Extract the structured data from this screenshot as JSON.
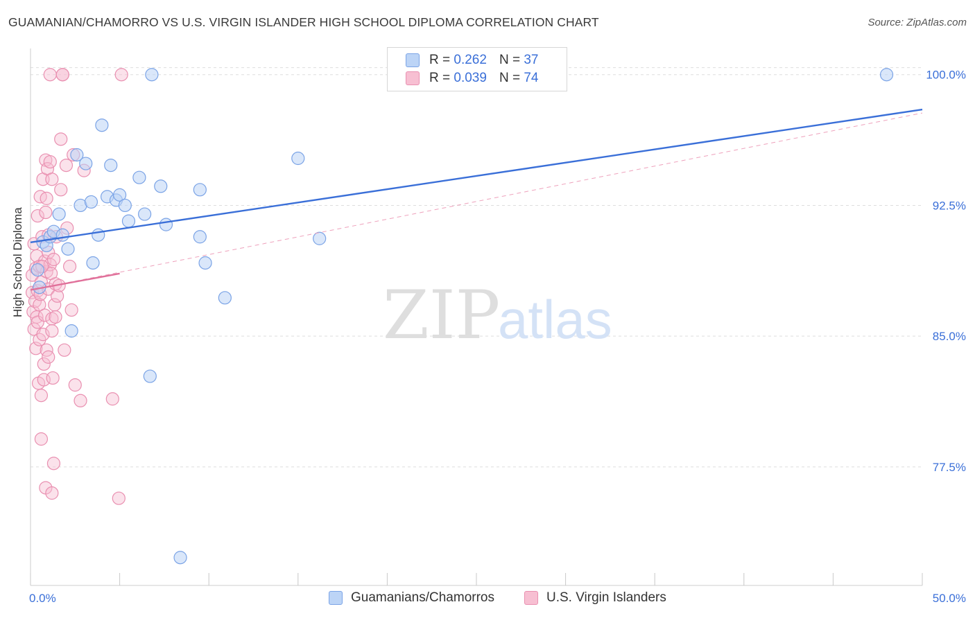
{
  "title": "GUAMANIAN/CHAMORRO VS U.S. VIRGIN ISLANDER HIGH SCHOOL DIPLOMA CORRELATION CHART",
  "source": "Source: ZipAtlas.com",
  "watermark": {
    "zip": "ZIP",
    "atlas": "atlas"
  },
  "colors": {
    "blue": "#3a6fd8",
    "blue_fill": "#bcd4f6",
    "pink": "#e0709a",
    "pink_fill": "#f7bfd2",
    "axis_text": "#3a6fd8",
    "grid": "#dddddd"
  },
  "legend": {
    "rows": [
      {
        "r_label": "R =",
        "r_value": "0.262",
        "n_label": "N =",
        "n_value": "37"
      },
      {
        "r_label": "R =",
        "r_value": "0.039",
        "n_label": "N =",
        "n_value": "74"
      }
    ]
  },
  "bottom_legend": [
    "Guamanians/Chamorros",
    "U.S. Virgin Islanders"
  ],
  "chart_data": {
    "type": "scatter",
    "title": "GUAMANIAN/CHAMORRO VS U.S. VIRGIN ISLANDER HIGH SCHOOL DIPLOMA CORRELATION CHART",
    "xlabel": "",
    "ylabel": "High School Diploma",
    "xlim": [
      0,
      50
    ],
    "ylim": [
      70.7,
      101.5
    ],
    "x_tick_labels": [
      "0.0%",
      "50.0%"
    ],
    "y_ticks": [
      77.5,
      85.0,
      92.5,
      100.0
    ],
    "y_tick_labels": [
      "77.5%",
      "85.0%",
      "92.5%",
      "100.0%"
    ],
    "series": [
      {
        "name": "Guamanians/Chamorros",
        "color": "#3a6fd8",
        "trend": {
          "x": [
            0,
            50
          ],
          "y": [
            90.38,
            98.0
          ],
          "style": "solid"
        },
        "points": [
          [
            0.4,
            88.8
          ],
          [
            0.5,
            87.8
          ],
          [
            0.7,
            90.4
          ],
          [
            0.9,
            90.2
          ],
          [
            1.1,
            90.7
          ],
          [
            1.3,
            91.0
          ],
          [
            1.6,
            92.0
          ],
          [
            1.8,
            90.8
          ],
          [
            2.1,
            90.0
          ],
          [
            2.3,
            85.3
          ],
          [
            2.6,
            95.4
          ],
          [
            2.8,
            92.5
          ],
          [
            3.1,
            94.9
          ],
          [
            3.4,
            92.7
          ],
          [
            3.5,
            89.2
          ],
          [
            3.8,
            90.8
          ],
          [
            4.0,
            97.1
          ],
          [
            4.3,
            93.0
          ],
          [
            4.5,
            94.8
          ],
          [
            4.8,
            92.8
          ],
          [
            5.0,
            93.1
          ],
          [
            5.3,
            92.5
          ],
          [
            5.5,
            91.6
          ],
          [
            6.1,
            94.1
          ],
          [
            6.4,
            92.0
          ],
          [
            6.7,
            82.7
          ],
          [
            6.8,
            100.0
          ],
          [
            7.3,
            93.6
          ],
          [
            7.6,
            91.4
          ],
          [
            8.4,
            72.3
          ],
          [
            9.5,
            93.4
          ],
          [
            9.5,
            90.7
          ],
          [
            9.8,
            89.2
          ],
          [
            10.9,
            87.2
          ],
          [
            15.0,
            95.2
          ],
          [
            16.2,
            90.6
          ],
          [
            48.0,
            100.0
          ]
        ]
      },
      {
        "name": "U.S. Virgin Islanders",
        "color": "#e0709a",
        "trend": {
          "x": [
            0,
            5.0
          ],
          "y": [
            87.65,
            88.59
          ],
          "style": "solid",
          "extended": {
            "x": [
              0,
              50
            ],
            "y": [
              87.65,
              97.8
            ],
            "style": "dashed"
          }
        },
        "points": [
          [
            0.1,
            88.5
          ],
          [
            0.1,
            87.5
          ],
          [
            0.15,
            86.4
          ],
          [
            0.2,
            90.3
          ],
          [
            0.2,
            85.4
          ],
          [
            0.25,
            87.0
          ],
          [
            0.3,
            88.9
          ],
          [
            0.3,
            84.3
          ],
          [
            0.35,
            86.1
          ],
          [
            0.35,
            89.6
          ],
          [
            0.4,
            91.9
          ],
          [
            0.4,
            87.6
          ],
          [
            0.4,
            85.8
          ],
          [
            0.45,
            82.3
          ],
          [
            0.5,
            84.8
          ],
          [
            0.5,
            89.0
          ],
          [
            0.5,
            86.8
          ],
          [
            0.55,
            93.0
          ],
          [
            0.55,
            87.4
          ],
          [
            0.6,
            81.6
          ],
          [
            0.6,
            79.1
          ],
          [
            0.6,
            88.1
          ],
          [
            0.65,
            90.7
          ],
          [
            0.7,
            94.0
          ],
          [
            0.7,
            85.1
          ],
          [
            0.75,
            83.4
          ],
          [
            0.75,
            82.5
          ],
          [
            0.8,
            89.3
          ],
          [
            0.8,
            86.2
          ],
          [
            0.85,
            92.1
          ],
          [
            0.85,
            76.3
          ],
          [
            0.85,
            95.1
          ],
          [
            0.9,
            92.9
          ],
          [
            0.9,
            88.7
          ],
          [
            0.9,
            84.2
          ],
          [
            0.95,
            94.6
          ],
          [
            1.0,
            90.8
          ],
          [
            1.0,
            89.8
          ],
          [
            1.0,
            83.8
          ],
          [
            1.0,
            87.7
          ],
          [
            1.1,
            100.0
          ],
          [
            1.1,
            95.0
          ],
          [
            1.1,
            89.1
          ],
          [
            1.15,
            88.6
          ],
          [
            1.2,
            86.0
          ],
          [
            1.2,
            85.3
          ],
          [
            1.2,
            94.0
          ],
          [
            1.2,
            76.0
          ],
          [
            1.25,
            82.6
          ],
          [
            1.3,
            77.7
          ],
          [
            1.3,
            89.4
          ],
          [
            1.35,
            86.8
          ],
          [
            1.4,
            88.0
          ],
          [
            1.4,
            86.1
          ],
          [
            1.45,
            90.7
          ],
          [
            1.5,
            87.3
          ],
          [
            1.6,
            87.9
          ],
          [
            1.7,
            96.3
          ],
          [
            1.7,
            93.4
          ],
          [
            1.8,
            100.0
          ],
          [
            1.8,
            100.0
          ],
          [
            1.9,
            84.2
          ],
          [
            2.0,
            94.8
          ],
          [
            2.05,
            91.2
          ],
          [
            2.2,
            89.0
          ],
          [
            2.3,
            86.5
          ],
          [
            2.4,
            95.4
          ],
          [
            2.5,
            82.2
          ],
          [
            2.8,
            81.3
          ],
          [
            3.0,
            94.5
          ],
          [
            4.6,
            81.4
          ],
          [
            4.95,
            75.7
          ],
          [
            5.1,
            100.0
          ],
          [
            0.65,
            89.0
          ]
        ]
      }
    ],
    "legend_position": "top-center",
    "grid": true
  }
}
